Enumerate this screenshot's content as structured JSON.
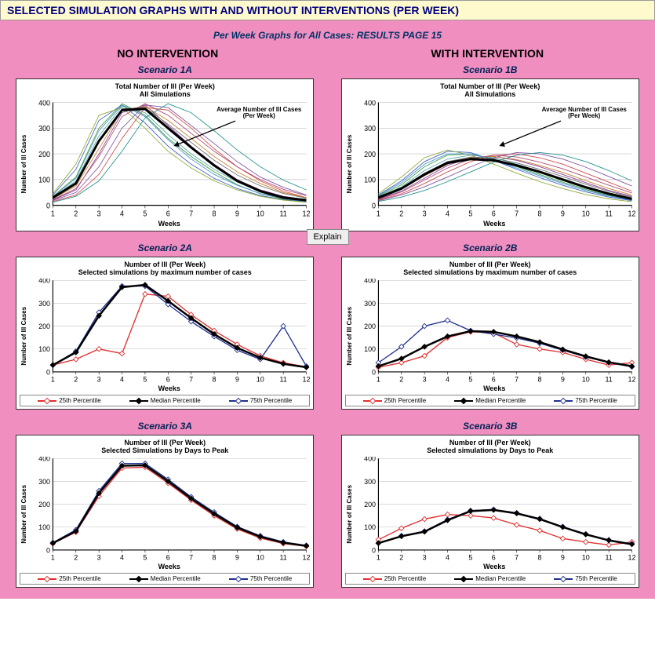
{
  "header": "SELECTED SIMULATION GRAPHS WITH AND WITHOUT INTERVENTIONS (PER WEEK)",
  "subtitle": "Per Week Graphs for All Cases: RESULTS PAGE 15",
  "columns": {
    "left": "NO INTERVENTION",
    "right": "WITH INTERVENTION"
  },
  "explain_label": "Explain",
  "colors": {
    "page_bg": "#f08ec0",
    "header_bg": "#fffacd",
    "chart_bg": "#ffffff",
    "grid": "#c0c0c0",
    "axis": "#000000",
    "p25": "#e03030",
    "median": "#000000",
    "p75": "#203090",
    "spaghetti": [
      "#8b3a9e",
      "#379f37",
      "#d04848",
      "#3c5fbf",
      "#c97f2a",
      "#57a7a7",
      "#7c52a0",
      "#8aa832",
      "#b0476e",
      "#4a8fd6",
      "#6e6e6e",
      "#21918c",
      "#cc6699",
      "#99cc33",
      "#6666cc",
      "#ff9933"
    ]
  },
  "axis": {
    "x": {
      "label": "Weeks",
      "ticks": [
        1,
        2,
        3,
        4,
        5,
        6,
        7,
        8,
        9,
        10,
        11,
        12
      ],
      "min": 1,
      "max": 12
    },
    "y": {
      "label": "Number of Ill Cases",
      "ticks": [
        0,
        100,
        200,
        300,
        400
      ],
      "min": 0,
      "max": 400
    },
    "tick_fontsize": 8,
    "label_fontsize": 9
  },
  "legend": {
    "p25": "25th Percentile",
    "median": "Median Percentile",
    "p75": "75th Percentile"
  },
  "charts": {
    "s1a": {
      "scenario": "Scenario 1A",
      "title_l1": "Total Number of Ill (Per Week)",
      "title_l2": "All Simulations",
      "type": "spaghetti",
      "annotation": "Average Number of Ill Cases (Per Week)",
      "mean": [
        30,
        85,
        250,
        370,
        375,
        300,
        225,
        155,
        95,
        55,
        30,
        20
      ],
      "sims": [
        [
          20,
          60,
          200,
          360,
          390,
          310,
          230,
          160,
          100,
          60,
          35,
          22
        ],
        [
          35,
          110,
          300,
          395,
          350,
          260,
          190,
          130,
          80,
          45,
          25,
          15
        ],
        [
          15,
          40,
          120,
          260,
          380,
          370,
          300,
          220,
          150,
          95,
          55,
          30
        ],
        [
          40,
          140,
          330,
          390,
          320,
          230,
          160,
          105,
          65,
          38,
          22,
          14
        ],
        [
          25,
          75,
          220,
          370,
          385,
          330,
          260,
          190,
          130,
          85,
          50,
          30
        ],
        [
          30,
          95,
          270,
          385,
          360,
          275,
          200,
          140,
          90,
          55,
          30,
          18
        ],
        [
          18,
          50,
          150,
          300,
          390,
          380,
          310,
          240,
          170,
          110,
          70,
          40
        ],
        [
          45,
          160,
          350,
          380,
          300,
          210,
          145,
          95,
          60,
          35,
          20,
          12
        ],
        [
          22,
          65,
          190,
          345,
          395,
          350,
          280,
          210,
          150,
          100,
          62,
          38
        ],
        [
          33,
          105,
          290,
          390,
          345,
          255,
          180,
          120,
          78,
          46,
          27,
          16
        ],
        [
          28,
          88,
          245,
          375,
          380,
          315,
          245,
          175,
          118,
          76,
          46,
          28
        ],
        [
          12,
          35,
          95,
          210,
          340,
          395,
          360,
          290,
          215,
          150,
          98,
          60
        ]
      ]
    },
    "s1b": {
      "scenario": "Scenario 1B",
      "title_l1": "Total Number of Ill (Per Week)",
      "title_l2": "All Simulations",
      "type": "spaghetti",
      "annotation": "Average Number of Ill Cases (Per Week)",
      "mean": [
        30,
        65,
        120,
        165,
        180,
        175,
        155,
        130,
        100,
        70,
        45,
        25
      ],
      "sims": [
        [
          25,
          55,
          105,
          155,
          185,
          190,
          175,
          150,
          120,
          88,
          58,
          35
        ],
        [
          35,
          80,
          150,
          195,
          200,
          180,
          150,
          120,
          90,
          62,
          38,
          22
        ],
        [
          20,
          45,
          85,
          130,
          170,
          195,
          200,
          185,
          160,
          125,
          90,
          55
        ],
        [
          40,
          95,
          170,
          210,
          205,
          175,
          140,
          108,
          78,
          52,
          32,
          18
        ],
        [
          28,
          62,
          115,
          160,
          185,
          190,
          178,
          155,
          128,
          96,
          65,
          40
        ],
        [
          32,
          72,
          135,
          180,
          195,
          185,
          160,
          132,
          100,
          72,
          46,
          27
        ],
        [
          18,
          40,
          72,
          110,
          150,
          185,
          205,
          200,
          180,
          148,
          112,
          75
        ],
        [
          45,
          110,
          185,
          215,
          195,
          160,
          125,
          92,
          65,
          42,
          25,
          14
        ],
        [
          22,
          52,
          98,
          145,
          180,
          195,
          188,
          168,
          142,
          110,
          78,
          48
        ],
        [
          38,
          88,
          160,
          200,
          200,
          175,
          145,
          115,
          85,
          58,
          36,
          20
        ],
        [
          30,
          68,
          125,
          170,
          188,
          183,
          165,
          140,
          112,
          82,
          54,
          32
        ],
        [
          15,
          32,
          58,
          92,
          130,
          168,
          195,
          205,
          195,
          170,
          135,
          95
        ]
      ]
    },
    "s2a": {
      "scenario": "Scenario 2A",
      "title_l1": "Number of Ill (Per Week)",
      "title_l2": "Selected simulations by maximum number of cases",
      "type": "percentiles",
      "p25": [
        30,
        55,
        100,
        80,
        340,
        330,
        250,
        180,
        120,
        70,
        40,
        22
      ],
      "median": [
        30,
        85,
        245,
        370,
        380,
        310,
        235,
        165,
        105,
        62,
        35,
        20
      ],
      "p75": [
        30,
        90,
        260,
        375,
        375,
        295,
        220,
        155,
        95,
        55,
        200,
        25
      ]
    },
    "s2b": {
      "scenario": "Scenario 2B",
      "title_l1": "Number of Ill (Per Week)",
      "title_l2": "Selected simulations by maximum number of cases",
      "type": "percentiles",
      "p25": [
        20,
        40,
        70,
        150,
        175,
        170,
        120,
        100,
        85,
        55,
        30,
        40
      ],
      "median": [
        25,
        58,
        110,
        155,
        178,
        175,
        155,
        130,
        98,
        68,
        42,
        25
      ],
      "p75": [
        40,
        110,
        200,
        225,
        180,
        165,
        148,
        125,
        95,
        65,
        40,
        22
      ]
    },
    "s3a": {
      "scenario": "Scenario 3A",
      "title_l1": "Number of Ill (Per Week)",
      "title_l2": "Selected Simulations by Days to Peak",
      "type": "percentiles",
      "p25": [
        28,
        78,
        235,
        358,
        362,
        292,
        218,
        150,
        92,
        52,
        28,
        16
      ],
      "median": [
        30,
        82,
        248,
        368,
        370,
        300,
        225,
        158,
        98,
        58,
        32,
        18
      ],
      "p75": [
        32,
        88,
        258,
        378,
        378,
        308,
        232,
        165,
        102,
        62,
        35,
        20
      ]
    },
    "s3b": {
      "scenario": "Scenario 3B",
      "title_l1": "Number of Ill (Per Week)",
      "title_l2": "Selected simulations by Days to Peak",
      "type": "percentiles",
      "p25": [
        45,
        95,
        135,
        155,
        150,
        140,
        110,
        85,
        50,
        35,
        22,
        35
      ],
      "median": [
        30,
        60,
        80,
        130,
        170,
        175,
        160,
        135,
        100,
        68,
        42,
        25
      ],
      "p75": [
        30,
        62,
        82,
        133,
        172,
        177,
        162,
        137,
        102,
        70,
        44,
        27
      ]
    }
  }
}
